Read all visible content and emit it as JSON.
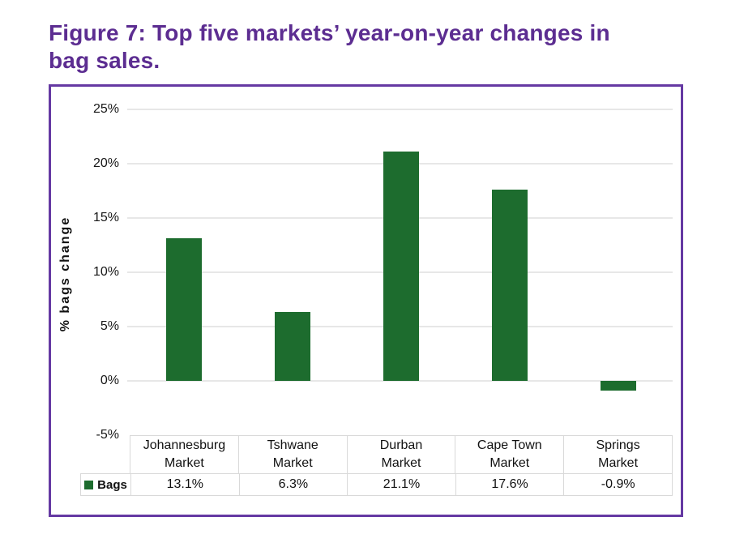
{
  "header": {
    "title_lines": [
      "Figure 7: Top five markets’ year-on-year changes in",
      "bag sales."
    ],
    "title_color": "#5c2d91"
  },
  "chart_data": {
    "type": "bar",
    "title": "Figure 7: Top five markets’ year-on-year changes in bag sales.",
    "categories": [
      "Johannesburg\nMarket",
      "Tshwane\nMarket",
      "Durban\nMarket",
      "Cape Town\nMarket",
      "Springs\nMarket"
    ],
    "series": [
      {
        "name": "Bags",
        "values": [
          13.1,
          6.3,
          21.1,
          17.6,
          -0.9
        ],
        "value_labels": [
          "13.1%",
          "6.3%",
          "21.1%",
          "17.6%",
          "-0.9%"
        ],
        "color": "#1d6c2e"
      }
    ],
    "xlabel": "",
    "ylabel": "% bags change",
    "ylim": [
      -5,
      25
    ],
    "yticks": {
      "values": [
        25,
        20,
        15,
        10,
        5,
        0,
        -5
      ],
      "labels": [
        "25%",
        "20%",
        "15%",
        "10%",
        "5%",
        "0%",
        "-5%"
      ]
    },
    "grid": true,
    "legend_position": "bottom-left-table",
    "colors": {
      "bar": "#1d6c2e",
      "frame_border": "#6539a3",
      "gridline": "#e7e7e7",
      "table_border": "#d9d9d9",
      "text": "#111111"
    }
  }
}
